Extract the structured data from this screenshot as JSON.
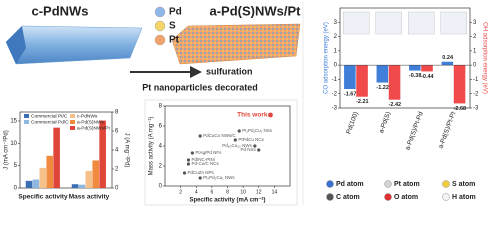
{
  "illustration": {
    "left_label": "c-PdNWs",
    "right_label": "a-Pd(S)NWs/Pt",
    "legend": [
      {
        "name": "Pd",
        "color": "#8fb6e6"
      },
      {
        "name": "S",
        "color": "#f3d56a"
      },
      {
        "name": "Pt",
        "color": "#f0a36a"
      }
    ],
    "arrow_top": "sulfuration",
    "arrow_bottom": "Pt nanoparticles decorated"
  },
  "chart_data": [
    {
      "type": "bar",
      "categories": [
        "Specific activity",
        "Mass activity"
      ],
      "category_axes": [
        "y",
        "y2"
      ],
      "ylabel": "J (mA cm⁻²Pd)",
      "y2label": "J (A mg⁻¹Pd)",
      "ylim": [
        0,
        17
      ],
      "yticks": [
        0,
        5,
        10,
        15
      ],
      "y2lim": [
        0,
        8
      ],
      "y2ticks": [
        0,
        2,
        4,
        6,
        8
      ],
      "series": [
        {
          "name": "Commercial Pt/C",
          "color": "#3a6fb5",
          "values": [
            1.6,
            0.4
          ]
        },
        {
          "name": "Commercial Pd/C",
          "color": "#8fb8e0",
          "values": [
            1.9,
            0.35
          ]
        },
        {
          "name": "c-PdNWs",
          "color": "#f6c08a",
          "values": [
            4.5,
            1.8
          ]
        },
        {
          "name": "a-Pd(S)NWs",
          "color": "#f08a3e",
          "values": [
            7.2,
            2.9
          ]
        },
        {
          "name": "a-Pd(S)NWs/Pt",
          "color": "#e0453a",
          "values": [
            13.5,
            7.1
          ]
        }
      ]
    },
    {
      "type": "scatter",
      "xlabel": "Specific activity (mA cm⁻²)",
      "ylabel": "Mass activity (A mg⁻¹)",
      "xlim": [
        0,
        16
      ],
      "xticks": [
        2,
        4,
        6,
        8,
        10,
        12,
        14
      ],
      "ylim": [
        0,
        8
      ],
      "yticks": [
        0,
        2,
        4,
        6,
        8
      ],
      "x": [
        13.5,
        4.5,
        9.5,
        9,
        11.5,
        12,
        3.5,
        3,
        3,
        2.5,
        4.5
      ],
      "values": [
        7.1,
        5.0,
        5.5,
        4.6,
        4.0,
        3.6,
        3.3,
        2.6,
        2.2,
        1.3,
        0.8
      ],
      "point_labels": [
        "This work",
        "PdCuCo NWs/C",
        "Pt₁Pd₁Cu₁ NSs",
        "PtPdCu NCs",
        "Pd₈₀Cu₂₀ NWs",
        "Pd NSs",
        "PtAg/Pd NFs",
        "Pd/NC-PtNi",
        "Pd-Co/C NCs",
        "PdCuZn NPs",
        "Pt₂Pd₂Cu₁ NWs"
      ],
      "colors": [
        "#e0453a",
        "#555555",
        "#555555",
        "#555555",
        "#555555",
        "#555555",
        "#555555",
        "#555555",
        "#555555",
        "#555555",
        "#555555"
      ]
    },
    {
      "type": "bar",
      "categories": [
        "Pd(100)",
        "a-Pd(S)",
        "a-Pd(S)/Pt-Pd",
        "a-Pd(S)/Pt-Pt"
      ],
      "ylabel": "CO adsorption energy (eV)",
      "y2label": "OH adsorption energy (eV)",
      "ylim": [
        -3,
        4
      ],
      "yticks": [
        -3,
        -2,
        -1,
        0,
        1,
        2,
        3
      ],
      "y2lim": [
        -3,
        4
      ],
      "y2ticks": [
        -3,
        -2,
        -1,
        0,
        1,
        2,
        3
      ],
      "show_values": true,
      "series": [
        {
          "name": "CO",
          "color": "#3f7fd9",
          "axis": "y",
          "values": [
            -1.67,
            -1.22,
            -0.38,
            0.24
          ]
        },
        {
          "name": "OH",
          "color": "#f04a4a",
          "axis": "y2",
          "values": [
            -2.21,
            -2.42,
            -0.44,
            -2.68
          ]
        }
      ]
    }
  ],
  "atom_legend": [
    {
      "name": "Pd atom",
      "color": "#3a6fd0"
    },
    {
      "name": "Pt atom",
      "color": "#d4d4d4"
    },
    {
      "name": "S atom",
      "color": "#f0d040"
    },
    {
      "name": "C atom",
      "color": "#555555"
    },
    {
      "name": "O atom",
      "color": "#e03030"
    },
    {
      "name": "H atom",
      "color": "#f4f4f4"
    }
  ]
}
